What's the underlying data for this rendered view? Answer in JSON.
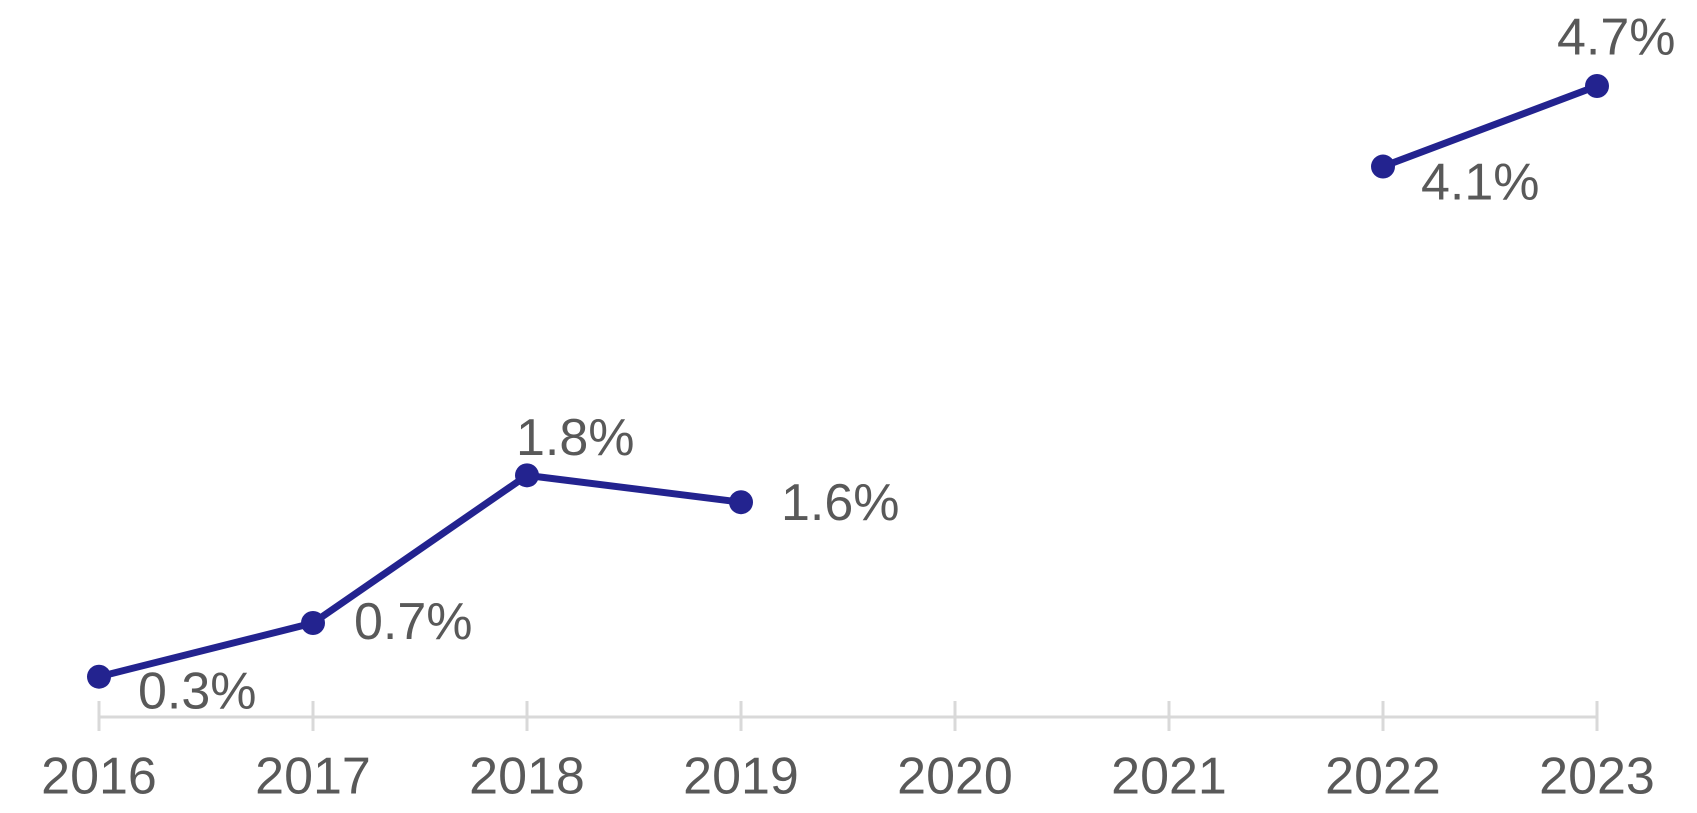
{
  "chart_data": {
    "type": "line",
    "categories": [
      "2016",
      "2017",
      "2018",
      "2019",
      "2020",
      "2021",
      "2022",
      "2023"
    ],
    "series": [
      {
        "color": "#23238f",
        "values": [
          0.3,
          0.7,
          1.8,
          1.6,
          null,
          null,
          4.1,
          4.7
        ],
        "value_labels": [
          "0.3%",
          "0.7%",
          "1.8%",
          "1.6%",
          null,
          null,
          "4.1%",
          "4.7%"
        ]
      }
    ]
  }
}
